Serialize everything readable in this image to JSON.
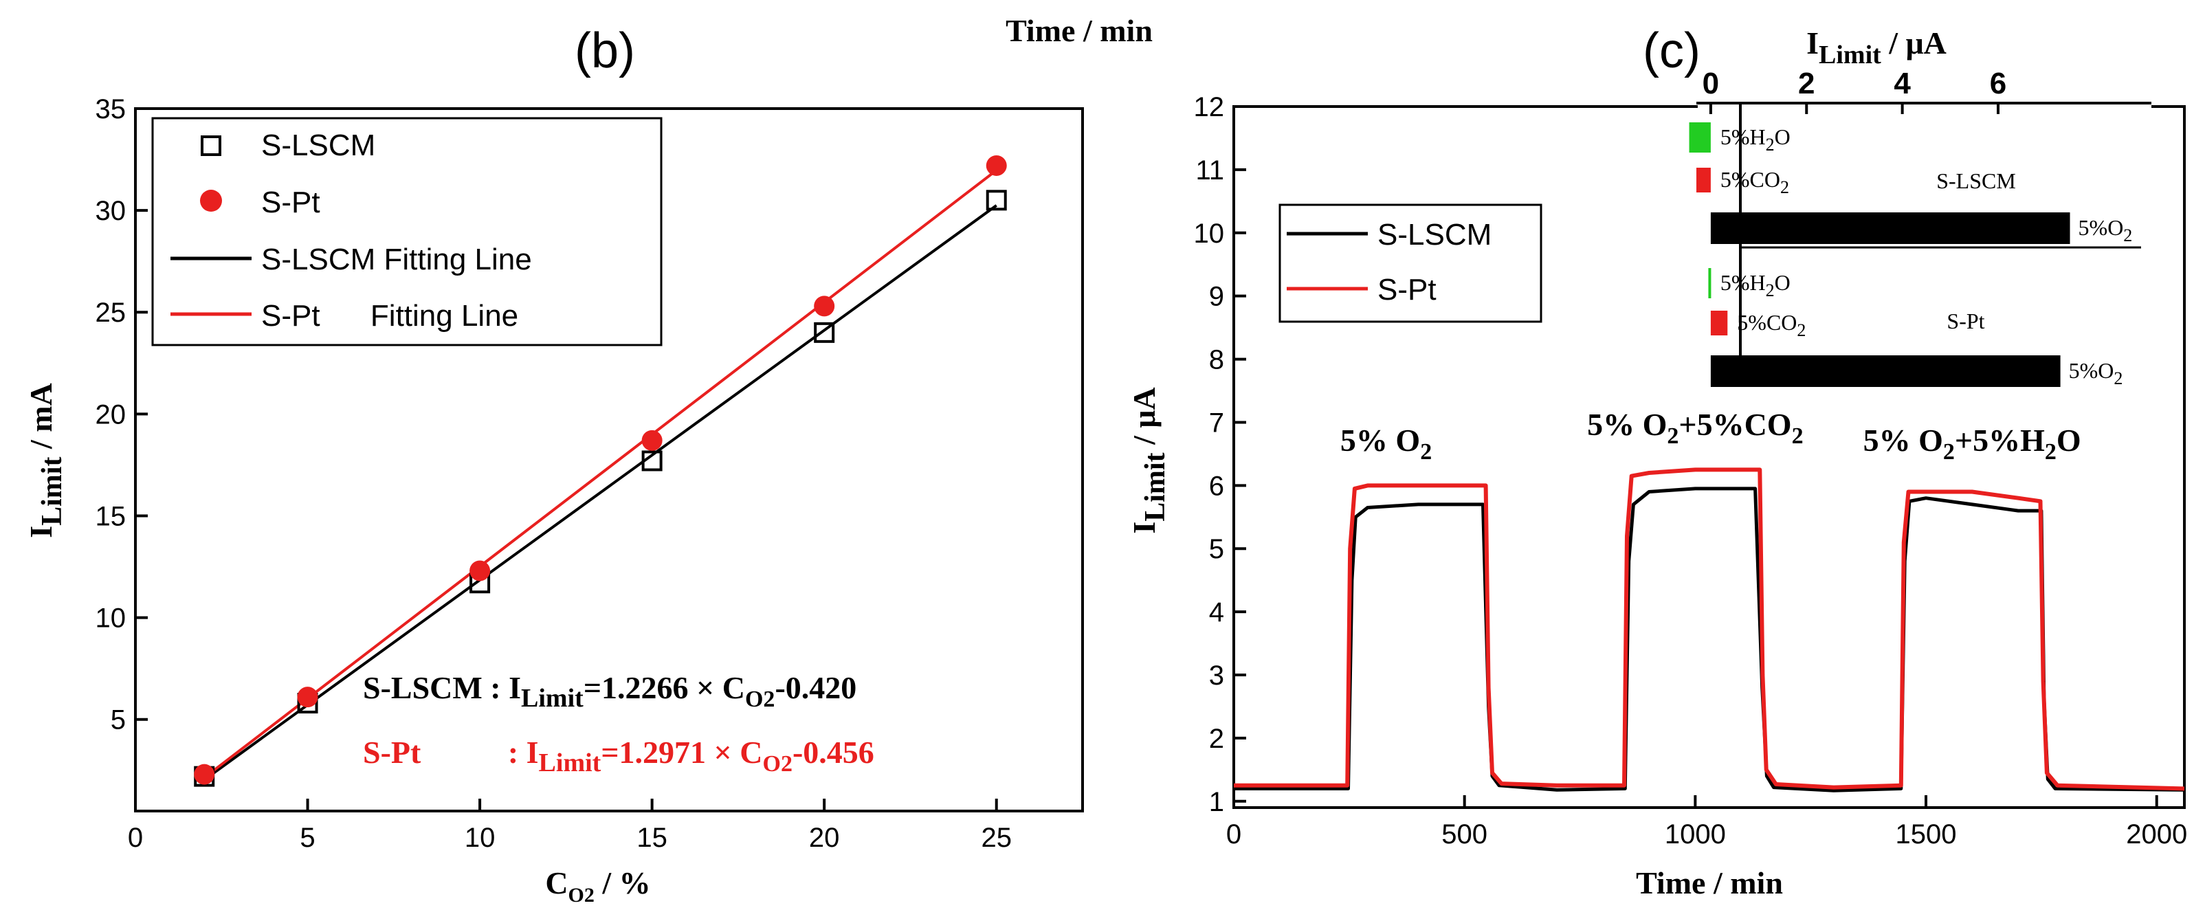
{
  "header": {
    "time_label": "Time / min"
  },
  "chart_data": [
    {
      "panel": "b",
      "panel_label": "(b)",
      "type": "scatter",
      "xlabel_main": "C",
      "xlabel_sub": "O2",
      "xlabel_unit": " / %",
      "ylabel_main": "I",
      "ylabel_sub": "Limit",
      "ylabel_unit": " / mA",
      "xlim": [
        0,
        27.5
      ],
      "ylim": [
        0.5,
        35
      ],
      "xticks": [
        0,
        5,
        10,
        15,
        20,
        25
      ],
      "yticks": [
        5,
        10,
        15,
        20,
        25,
        30,
        35
      ],
      "legend_position": "top-left",
      "series": [
        {
          "name": "S-LSCM",
          "color": "#000000",
          "marker": "open-square",
          "x": [
            2,
            5,
            10,
            15,
            20,
            25
          ],
          "y": [
            2.2,
            5.8,
            11.7,
            17.7,
            24.0,
            30.5
          ]
        },
        {
          "name": "S-Pt",
          "color": "#e8201f",
          "marker": "filled-circle",
          "x": [
            2,
            5,
            10,
            15,
            20,
            25
          ],
          "y": [
            2.3,
            6.1,
            12.3,
            18.7,
            25.3,
            32.2
          ]
        }
      ],
      "fits": [
        {
          "name": "S-LSCM Fitting Line",
          "color": "#000000",
          "slope": 1.2266,
          "intercept": -0.42,
          "x_range": [
            2,
            25
          ]
        },
        {
          "name": "S-Pt      Fitting Line",
          "color": "#e8201f",
          "slope": 1.2971,
          "intercept": -0.456,
          "x_range": [
            2,
            25
          ]
        }
      ],
      "equations": [
        {
          "label": "S-LSCM : I",
          "sub1": "Limit",
          "mid": "=1.2266 × ",
          "c": "C",
          "sub2": "O2",
          "tail": "-0.420",
          "color": "#000000"
        },
        {
          "label": "S-Pt           : I",
          "sub1": "Limit",
          "mid": "=1.2971 × ",
          "c": "C",
          "sub2": "O2",
          "tail": "-0.456",
          "color": "#e8201f"
        }
      ]
    },
    {
      "panel": "c",
      "panel_label": "(c)",
      "type": "line",
      "xlabel": "Time / min",
      "ylabel_main": "I",
      "ylabel_sub": "Limit",
      "ylabel_unit": " / μA",
      "xlim": [
        0,
        2060
      ],
      "ylim": [
        0.9,
        12
      ],
      "xticks": [
        0,
        500,
        1000,
        1500,
        2000
      ],
      "yticks": [
        1,
        2,
        3,
        4,
        5,
        6,
        7,
        8,
        9,
        10,
        11,
        12
      ],
      "legend_position": "top-left",
      "series": [
        {
          "name": "S-LSCM",
          "color": "#000000",
          "x": [
            0,
            248,
            256,
            264,
            290,
            400,
            540,
            552,
            560,
            575,
            700,
            848,
            856,
            866,
            900,
            1000,
            1130,
            1145,
            1155,
            1170,
            1300,
            1446,
            1454,
            1464,
            1500,
            1600,
            1700,
            1750,
            1756,
            1764,
            1780,
            2060
          ],
          "y": [
            1.2,
            1.2,
            4.5,
            5.5,
            5.65,
            5.7,
            5.7,
            2.5,
            1.4,
            1.25,
            1.18,
            1.2,
            4.8,
            5.7,
            5.9,
            5.95,
            5.95,
            2.8,
            1.4,
            1.22,
            1.17,
            1.2,
            4.8,
            5.75,
            5.8,
            5.7,
            5.6,
            5.6,
            2.6,
            1.35,
            1.2,
            1.18
          ]
        },
        {
          "name": "S-Pt",
          "color": "#e8201f",
          "x": [
            0,
            246,
            252,
            262,
            290,
            400,
            546,
            552,
            560,
            580,
            700,
            846,
            852,
            862,
            900,
            1000,
            1140,
            1146,
            1154,
            1175,
            1300,
            1446,
            1452,
            1462,
            1500,
            1600,
            1700,
            1748,
            1754,
            1762,
            1785,
            2060
          ],
          "y": [
            1.25,
            1.25,
            5.0,
            5.95,
            6.0,
            6.0,
            6.0,
            2.8,
            1.45,
            1.28,
            1.25,
            1.25,
            5.2,
            6.15,
            6.2,
            6.25,
            6.25,
            3.0,
            1.5,
            1.27,
            1.22,
            1.25,
            5.1,
            5.9,
            5.9,
            5.9,
            5.8,
            5.75,
            2.9,
            1.45,
            1.25,
            1.2
          ]
        }
      ],
      "annotations": [
        {
          "parts": [
            "5% O",
            "2",
            ""
          ],
          "x": 330,
          "y": 6.55
        },
        {
          "parts": [
            "5% O",
            "2",
            "+5%CO",
            "2"
          ],
          "x": 1000,
          "y": 6.8
        },
        {
          "parts": [
            "5% O",
            "2",
            "+5%H",
            "2",
            "O"
          ],
          "x": 1600,
          "y": 6.55
        }
      ],
      "inset": {
        "xlabel_main": "I",
        "xlabel_sub": "Limit",
        "xlabel_unit": " / μA",
        "xticks": [
          0,
          2,
          4,
          6
        ],
        "xlim": [
          -0.3,
          9.2
        ],
        "type": "bar",
        "groups": [
          {
            "name": "S-LSCM",
            "bars": [
              {
                "label": "5%H2O",
                "value": -0.45,
                "color": "#22cc22"
              },
              {
                "label": "5%CO2",
                "value": -0.3,
                "color": "#e8201f"
              },
              {
                "label": "5%O2",
                "value": 7.5,
                "color": "#000000"
              }
            ]
          },
          {
            "name": "S-Pt",
            "bars": [
              {
                "label": "5%H2O",
                "value": -0.05,
                "color": "#22cc22"
              },
              {
                "label": "5%CO2",
                "value": 0.35,
                "color": "#e8201f"
              },
              {
                "label": "5%O2",
                "value": 7.3,
                "color": "#000000"
              }
            ]
          }
        ]
      }
    }
  ]
}
